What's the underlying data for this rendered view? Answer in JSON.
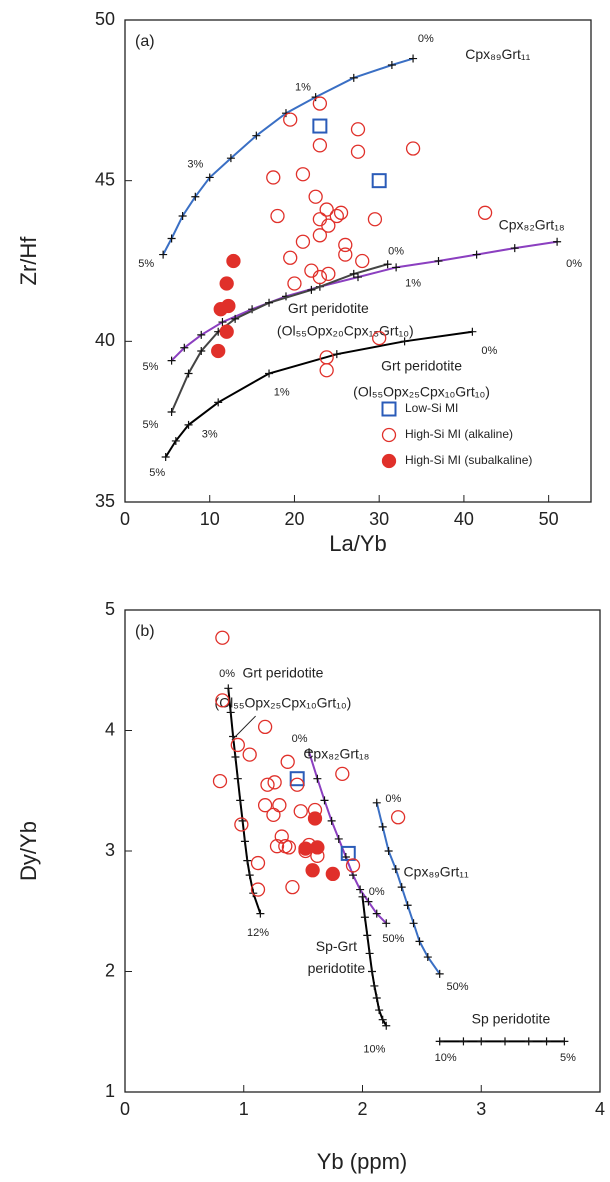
{
  "chart_data": [
    {
      "type": "scatter",
      "panel_label": "(a)",
      "x_label": "La/Yb",
      "y_label": "Zr/Hf",
      "xlim": [
        0,
        55
      ],
      "ylim": [
        35,
        50
      ],
      "xticks": [
        0,
        10,
        20,
        30,
        40,
        50
      ],
      "yticks": [
        35,
        40,
        45,
        50
      ],
      "legend": "lower right",
      "series": [
        {
          "name": "Low-Si MI",
          "color": "#2a5bb8",
          "marker": "square",
          "filled": false,
          "x": [
            23,
            30
          ],
          "y": [
            46.7,
            45.0
          ]
        },
        {
          "name": "High-Si MI (alkaline)",
          "color": "#e0302a",
          "marker": "circle",
          "filled": false,
          "x": [
            23,
            19.5,
            27.5,
            23,
            27.5,
            34,
            17.5,
            21,
            23.8,
            22.5,
            29.5,
            25,
            25.5,
            18,
            23,
            24,
            21,
            23,
            26,
            42.5,
            19.5,
            26,
            28,
            22,
            23,
            24,
            20,
            23.8,
            23.8,
            30
          ],
          "y": [
            47.4,
            46.9,
            46.6,
            46.1,
            45.9,
            46.0,
            45.1,
            45.2,
            44.1,
            44.5,
            43.8,
            43.9,
            44.0,
            43.9,
            43.8,
            43.6,
            43.1,
            43.3,
            43.0,
            44.0,
            42.6,
            42.7,
            42.5,
            42.2,
            42.0,
            42.1,
            41.8,
            39.5,
            39.1,
            40.1
          ]
        },
        {
          "name": "High-Si MI (subalkaline)",
          "color": "#e0302a",
          "marker": "circle",
          "filled": true,
          "x": [
            12.8,
            12,
            12.2,
            11.3,
            12,
            11
          ],
          "y": [
            42.5,
            41.8,
            41.1,
            41.0,
            40.3,
            39.7
          ]
        }
      ],
      "curves": [
        {
          "label": [
            "Cpx₈₉Grt₁₁"
          ],
          "color": "#3a6fc4",
          "tick_labels": [
            "0%",
            "1%",
            "3%",
            "5%"
          ],
          "x": [
            4.5,
            5.5,
            6.8,
            8.3,
            10,
            12.5,
            15.5,
            19,
            22.5,
            27,
            31.5,
            34
          ],
          "y": [
            42.7,
            43.2,
            43.9,
            44.5,
            45.1,
            45.7,
            46.4,
            47.1,
            47.6,
            48.2,
            48.6,
            48.8
          ]
        },
        {
          "label": [
            "Cpx₈₂Grt₁₈"
          ],
          "color": "#8b3fc0",
          "tick_labels": [
            "0%",
            "5%"
          ],
          "x": [
            5.5,
            7,
            9,
            11.5,
            15,
            19,
            23,
            27.5,
            32,
            37,
            41.5,
            46,
            51
          ],
          "y": [
            39.4,
            39.8,
            40.2,
            40.6,
            41.0,
            41.4,
            41.7,
            42.0,
            42.3,
            42.5,
            42.7,
            42.9,
            43.1
          ]
        },
        {
          "label": [
            "Grt peridotite",
            "(Ol₅₅Opx₂₀Cpx₁₅Grt₁₀)"
          ],
          "color": "#444444",
          "tick_labels": [
            "0%",
            "1%",
            "5%"
          ],
          "x": [
            5.5,
            7.5,
            9,
            11,
            13,
            17,
            22,
            27,
            31
          ],
          "y": [
            37.8,
            39.0,
            39.7,
            40.3,
            40.7,
            41.2,
            41.6,
            42.1,
            42.4
          ]
        },
        {
          "label": [
            "Grt peridotite",
            "(Ol₅₅Opx₂₅Cpx₁₀Grt₁₀)"
          ],
          "color": "#000000",
          "tick_labels": [
            "0%",
            "1%",
            "3%",
            "5%"
          ],
          "x": [
            4.8,
            6,
            7.5,
            11,
            17,
            25,
            33,
            41
          ],
          "y": [
            36.4,
            36.9,
            37.4,
            38.1,
            39.0,
            39.6,
            40.0,
            40.3
          ]
        }
      ]
    },
    {
      "type": "scatter",
      "panel_label": "(b)",
      "x_label": "Yb (ppm)",
      "y_label": "Dy/Yb",
      "xlim": [
        0,
        4
      ],
      "ylim": [
        1,
        5
      ],
      "xticks": [
        0,
        1,
        2,
        3,
        4
      ],
      "yticks": [
        1,
        2,
        3,
        4,
        5
      ],
      "series": [
        {
          "color": "#2a5bb8",
          "marker": "square",
          "filled": false,
          "x": [
            1.45,
            1.88
          ],
          "y": [
            3.6,
            2.98
          ]
        },
        {
          "color": "#e0302a",
          "marker": "circle",
          "filled": false,
          "x": [
            0.82,
            0.82,
            0.8,
            0.95,
            0.98,
            1.18,
            1.05,
            1.2,
            1.18,
            1.26,
            1.25,
            1.3,
            1.28,
            1.32,
            1.37,
            1.45,
            1.48,
            1.38,
            1.35,
            1.41,
            1.12,
            1.12,
            1.52,
            1.6,
            1.83,
            1.62,
            1.92,
            2.3,
            1.55
          ],
          "y": [
            4.77,
            4.25,
            3.58,
            3.88,
            3.22,
            4.03,
            3.8,
            3.55,
            3.38,
            3.57,
            3.3,
            3.38,
            3.04,
            3.12,
            3.74,
            3.55,
            3.33,
            3.03,
            3.04,
            2.7,
            2.9,
            2.68,
            3.0,
            3.34,
            3.64,
            2.96,
            2.88,
            3.28,
            3.05
          ]
        },
        {
          "color": "#e0302a",
          "marker": "circle",
          "filled": true,
          "x": [
            1.6,
            1.52,
            1.62,
            1.58,
            1.75
          ],
          "y": [
            3.27,
            3.02,
            3.03,
            2.84,
            2.81
          ]
        }
      ],
      "curves": [
        {
          "label": [
            "Grt peridotite",
            "(Ol₅₅Opx₂₅Cpx₁₀Grt₁₀)"
          ],
          "color": "#000000",
          "tick_labels": [
            "0%",
            "12%"
          ],
          "x": [
            0.87,
            0.89,
            0.91,
            0.93,
            0.95,
            0.97,
            0.99,
            1.01,
            1.03,
            1.05,
            1.08,
            1.14
          ],
          "y": [
            4.35,
            4.15,
            3.95,
            3.78,
            3.6,
            3.42,
            3.25,
            3.08,
            2.92,
            2.8,
            2.65,
            2.48
          ]
        },
        {
          "label": [
            "Cpx₈₂Grt₁₈"
          ],
          "color": "#8b3fc0",
          "tick_labels": [
            "0%",
            "50%"
          ],
          "x": [
            1.55,
            1.62,
            1.68,
            1.74,
            1.8,
            1.86,
            1.92,
            1.98,
            2.05,
            2.12,
            2.2
          ],
          "y": [
            3.82,
            3.6,
            3.42,
            3.25,
            3.1,
            2.95,
            2.8,
            2.68,
            2.58,
            2.48,
            2.4
          ]
        },
        {
          "label": [
            "Cpx₈₉Grt₁₁"
          ],
          "color": "#3a6fc4",
          "tick_labels": [
            "0%",
            "50%"
          ],
          "x": [
            2.12,
            2.17,
            2.22,
            2.28,
            2.33,
            2.38,
            2.43,
            2.48,
            2.55,
            2.65
          ],
          "y": [
            3.4,
            3.2,
            3.0,
            2.85,
            2.7,
            2.55,
            2.4,
            2.25,
            2.12,
            1.98
          ]
        },
        {
          "label": [
            "Sp-Grt",
            "peridotite"
          ],
          "color": "#000000",
          "tick_labels": [
            "0%",
            "10%"
          ],
          "x": [
            2.0,
            2.02,
            2.04,
            2.06,
            2.08,
            2.1,
            2.12,
            2.14,
            2.17,
            2.2
          ],
          "y": [
            2.62,
            2.45,
            2.3,
            2.15,
            2.0,
            1.88,
            1.78,
            1.68,
            1.6,
            1.55
          ]
        },
        {
          "label": [
            "Sp peridotite"
          ],
          "color": "#000000",
          "tick_labels": [
            "10%",
            "5%"
          ],
          "x": [
            2.65,
            2.85,
            3.0,
            3.2,
            3.4,
            3.55,
            3.7
          ],
          "y": [
            1.42,
            1.42,
            1.42,
            1.42,
            1.42,
            1.42,
            1.42
          ]
        }
      ]
    }
  ]
}
